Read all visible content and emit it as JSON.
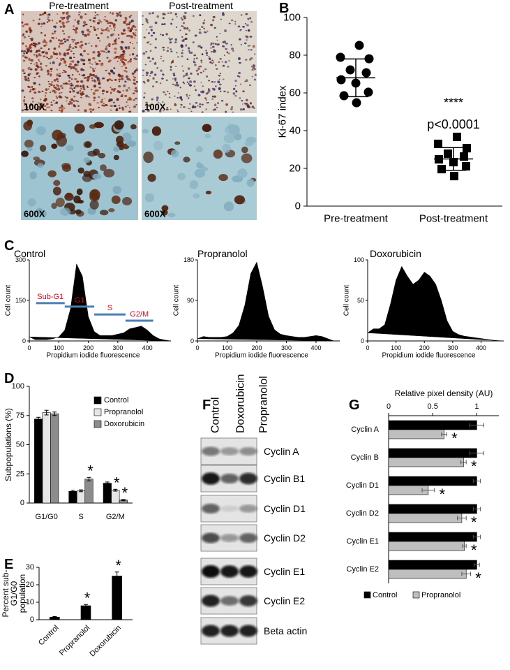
{
  "chart_data": [
    {
      "type": "micrograph",
      "panel": "A",
      "columns": [
        "Pre-treatment",
        "Post-treatment"
      ],
      "magnifications": [
        "100X",
        "600X"
      ]
    },
    {
      "type": "scatter",
      "panel": "B",
      "ylabel": "Ki-67 index",
      "categories": [
        "Pre-treatment",
        "Post-treatment"
      ],
      "ylim": [
        0,
        100
      ],
      "yticks": [
        0,
        20,
        40,
        60,
        80,
        100
      ],
      "color": "#000000",
      "groups": [
        {
          "marker": "circle",
          "values": [
            85.2,
            78.9,
            78.1,
            72.2,
            70.7,
            67,
            65.2,
            60.4,
            58.5,
            54.8
          ],
          "mean": 68,
          "sd": 10
        },
        {
          "marker": "square",
          "values": [
            36.7,
            33,
            30.7,
            27.8,
            26.3,
            24.8,
            23.3,
            21.1,
            19.6,
            15.9
          ],
          "mean": 25,
          "sd": 6
        }
      ],
      "annotations": [
        "****",
        "p<0.0001"
      ]
    },
    {
      "type": "area",
      "panel": "C",
      "title": "Control",
      "xlabel": "Propidium iodide fluorescence",
      "ylabel": "Cell count",
      "color": "#000000",
      "xlim": [
        0,
        480
      ],
      "xticks": [
        0,
        100,
        200,
        300,
        400
      ],
      "ylim": [
        0,
        300
      ],
      "yticks": [
        0,
        150,
        300
      ],
      "x": [
        0,
        20,
        40,
        60,
        80,
        100,
        120,
        140,
        160,
        180,
        200,
        220,
        240,
        260,
        280,
        300,
        320,
        340,
        360,
        380,
        400,
        420,
        440,
        460,
        480
      ],
      "values": [
        15,
        5,
        5,
        5,
        8,
        15,
        40,
        120,
        285,
        240,
        90,
        35,
        20,
        20,
        20,
        25,
        30,
        45,
        50,
        55,
        40,
        20,
        8,
        3,
        0
      ],
      "gates": [
        {
          "label": "Sub-G1",
          "range": [
            23,
            120
          ],
          "level": 140
        },
        {
          "label": "G1",
          "range": [
            120,
            220
          ],
          "level": 127
        },
        {
          "label": "S",
          "range": [
            220,
            326
          ],
          "level": 98
        },
        {
          "label": "G2/M",
          "range": [
            326,
            420
          ],
          "level": 75
        }
      ]
    },
    {
      "type": "area",
      "title": "Propranolol",
      "xlabel": "Propidium iodide fluorescence",
      "ylabel": "Cell count",
      "color": "#000000",
      "xlim": [
        0,
        480
      ],
      "xticks": [
        0,
        100,
        200,
        300,
        400
      ],
      "ylim": [
        0,
        180
      ],
      "yticks": [
        0,
        90,
        180
      ],
      "x": [
        0,
        20,
        40,
        60,
        80,
        100,
        120,
        140,
        160,
        180,
        200,
        220,
        240,
        260,
        280,
        300,
        320,
        340,
        360,
        380,
        400,
        420,
        440,
        460,
        480
      ],
      "values": [
        5,
        10,
        8,
        8,
        8,
        10,
        18,
        35,
        80,
        150,
        175,
        120,
        55,
        25,
        15,
        12,
        10,
        8,
        8,
        10,
        12,
        10,
        5,
        0,
        0
      ]
    },
    {
      "type": "area",
      "title": "Doxorubicin",
      "xlabel": "Propidium iodide fluorescence",
      "ylabel": "Cell count",
      "color": "#000000",
      "xlim": [
        0,
        480
      ],
      "xticks": [
        0,
        100,
        200,
        300,
        400
      ],
      "ylim": [
        0,
        100
      ],
      "yticks": [
        0,
        50,
        100
      ],
      "x": [
        0,
        20,
        40,
        60,
        80,
        100,
        120,
        140,
        160,
        180,
        200,
        220,
        240,
        260,
        280,
        300,
        320,
        340,
        360,
        380,
        400,
        420,
        440,
        460,
        480
      ],
      "values": [
        10,
        15,
        15,
        20,
        45,
        75,
        92,
        80,
        70,
        75,
        85,
        80,
        70,
        50,
        25,
        12,
        8,
        6,
        5,
        4,
        3,
        2,
        1,
        0,
        0
      ]
    },
    {
      "type": "bar",
      "panel": "D",
      "ylabel": "Subpopulations (%)",
      "categories": [
        "G1/G0",
        "S",
        "G2/M"
      ],
      "ylim": [
        0,
        100
      ],
      "yticks": [
        0,
        25,
        50,
        75,
        100
      ],
      "legend": "upper right",
      "series": [
        {
          "name": "Control",
          "color": "#000000",
          "values": [
            72,
            10,
            17
          ],
          "errors": [
            1.5,
            1,
            1
          ],
          "significance": [
            null,
            null,
            null
          ]
        },
        {
          "name": "Propranolol",
          "color": "#e6e6e6",
          "values": [
            77.5,
            10.5,
            11
          ],
          "errors": [
            2,
            0.8,
            0.8
          ],
          "significance": [
            null,
            null,
            "*"
          ]
        },
        {
          "name": "Doxorubicin",
          "color": "#8c8c8c",
          "values": [
            76.5,
            20.5,
            2.5
          ],
          "errors": [
            1.5,
            1.5,
            0.5
          ],
          "significance": [
            null,
            "*",
            "*"
          ]
        }
      ]
    },
    {
      "type": "bar",
      "panel": "E",
      "ylabel": [
        "Percent sub-",
        "G1/G0",
        "population"
      ],
      "categories": [
        "Control",
        "Propranolol",
        "Doxorubicin"
      ],
      "ylim": [
        0,
        30
      ],
      "yticks": [
        0,
        10,
        20,
        30
      ],
      "series": [
        {
          "color": "#000000",
          "values": [
            1.5,
            8,
            25
          ],
          "errors": [
            0.3,
            0.7,
            2.3
          ],
          "significance": [
            null,
            "*",
            "*"
          ]
        }
      ]
    },
    {
      "type": "western-blot",
      "panel": "F",
      "columns": [
        "Control",
        "Doxorubicin",
        "Propranolol"
      ],
      "rows": [
        "Cyclin A",
        "Cyclin B1",
        "Cyclin D1",
        "Cyclin D2",
        "Cyclin E1",
        "Cyclin E2",
        "Beta actin"
      ]
    },
    {
      "type": "barh",
      "panel": "G",
      "xlabel": "Relative pixel density (AU)",
      "categories": [
        "Cyclin A",
        "Cyclin B",
        "Cyclin D1",
        "Cyclin D2",
        "Cyclin E1",
        "Cyclin E2"
      ],
      "xlim": [
        0,
        1.25
      ],
      "xticks": [
        0,
        0.5,
        1
      ],
      "legend": "bottom",
      "series": [
        {
          "name": "Control",
          "color": "#000000",
          "values": [
            1,
            1,
            1,
            1,
            1,
            1
          ],
          "errors": [
            0.08,
            0.08,
            0.04,
            0.04,
            0.04,
            0.03
          ]
        },
        {
          "name": "Propranolol",
          "color": "#bfbfbf",
          "values": [
            0.63,
            0.85,
            0.45,
            0.83,
            0.86,
            0.88
          ],
          "errors": [
            0.03,
            0.03,
            0.07,
            0.05,
            0.02,
            0.05
          ],
          "significance": [
            "*",
            "*",
            "*",
            "*",
            "*",
            "*"
          ]
        }
      ]
    }
  ]
}
